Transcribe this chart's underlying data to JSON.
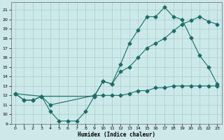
{
  "xlabel": "Humidex (Indice chaleur)",
  "x_ticks": [
    0,
    1,
    2,
    3,
    4,
    5,
    6,
    7,
    8,
    9,
    10,
    11,
    12,
    13,
    14,
    15,
    16,
    17,
    18,
    19,
    20,
    21,
    22,
    23
  ],
  "y_ticks": [
    9,
    10,
    11,
    12,
    13,
    14,
    15,
    16,
    17,
    18,
    19,
    20,
    21
  ],
  "xlim": [
    -0.5,
    23.5
  ],
  "ylim": [
    9.0,
    21.8
  ],
  "bg_color": "#cce8e8",
  "grid_color": "#aacccc",
  "line_color": "#1a6e6a",
  "line1_x": [
    0,
    1,
    2,
    3,
    4,
    5,
    6,
    7,
    8,
    9,
    10,
    11,
    12,
    13,
    14,
    15,
    16,
    17,
    18,
    19,
    20,
    21,
    22,
    23
  ],
  "line1_y": [
    12.2,
    11.5,
    11.5,
    11.9,
    10.3,
    9.3,
    9.3,
    9.3,
    10.3,
    11.9,
    13.5,
    13.2,
    15.3,
    17.5,
    18.9,
    20.3,
    20.3,
    21.3,
    20.3,
    20.0,
    18.1,
    16.2,
    15.0,
    13.2
  ],
  "line2_x": [
    0,
    3,
    9,
    10,
    11,
    12,
    13,
    14,
    15,
    16,
    17,
    18,
    19,
    20,
    21,
    22,
    23
  ],
  "line2_y": [
    12.2,
    11.9,
    11.9,
    13.5,
    13.2,
    14.5,
    15.0,
    16.0,
    17.0,
    17.5,
    18.0,
    18.8,
    19.5,
    19.9,
    20.3,
    19.8,
    19.5
  ],
  "line3_x": [
    0,
    1,
    2,
    3,
    4,
    9,
    10,
    11,
    12,
    13,
    14,
    15,
    16,
    17,
    18,
    19,
    20,
    21,
    22,
    23
  ],
  "line3_y": [
    12.2,
    11.5,
    11.5,
    11.9,
    11.0,
    12.0,
    12.0,
    12.0,
    12.0,
    12.2,
    12.5,
    12.5,
    12.8,
    12.8,
    13.0,
    13.0,
    13.0,
    13.0,
    13.0,
    13.0
  ]
}
